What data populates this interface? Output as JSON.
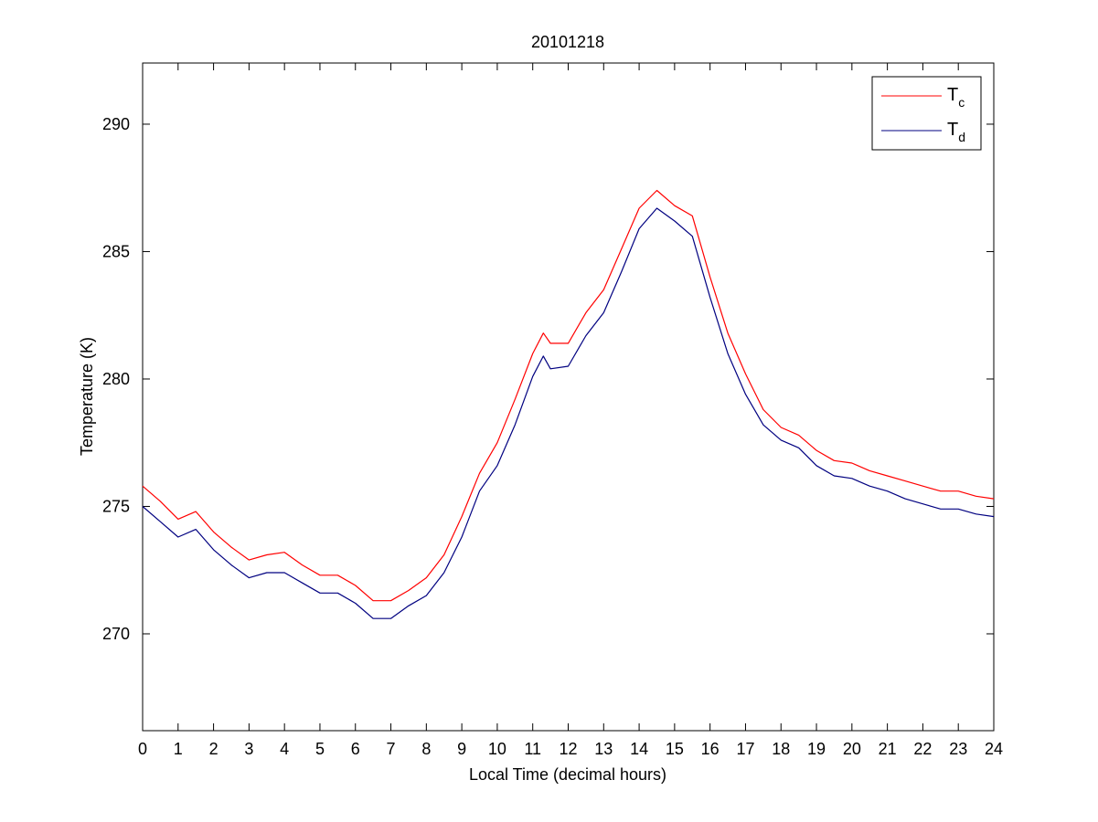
{
  "chart_data": {
    "type": "line",
    "title": "20101218",
    "xlabel": "Local Time (decimal hours)",
    "ylabel": "Temperature (K)",
    "xlim": [
      0,
      24
    ],
    "ylim": [
      266.2,
      292.4
    ],
    "xticks": [
      "0",
      "1",
      "2",
      "3",
      "4",
      "5",
      "6",
      "7",
      "8",
      "9",
      "10",
      "11",
      "12",
      "13",
      "14",
      "15",
      "16",
      "17",
      "18",
      "19",
      "20",
      "21",
      "22",
      "23",
      "24"
    ],
    "yticks": [
      "270",
      "275",
      "280",
      "285",
      "290"
    ],
    "grid": false,
    "legend_position": "top-right",
    "series": [
      {
        "name": "T",
        "name_sub": "c",
        "color": "#ff0000",
        "x": [
          0,
          0.5,
          1,
          1.5,
          2,
          2.5,
          3,
          3.5,
          4,
          4.5,
          5,
          5.5,
          6,
          6.5,
          7,
          7.5,
          8,
          8.5,
          9,
          9.5,
          10,
          10.5,
          11,
          11.3,
          11.5,
          12,
          12.5,
          13,
          13.5,
          14,
          14.5,
          15,
          15.5,
          16,
          16.5,
          17,
          17.5,
          18,
          18.5,
          19,
          19.5,
          20,
          20.5,
          21,
          21.5,
          22,
          22.5,
          23,
          23.5,
          24
        ],
        "y": [
          275.8,
          275.2,
          274.5,
          274.8,
          274.0,
          273.4,
          272.9,
          273.1,
          273.2,
          272.7,
          272.3,
          272.3,
          271.9,
          271.3,
          271.3,
          271.7,
          272.2,
          273.1,
          274.6,
          276.3,
          277.5,
          279.2,
          281.0,
          281.8,
          281.4,
          281.4,
          282.6,
          283.5,
          285.1,
          286.7,
          287.4,
          286.8,
          286.4,
          284.0,
          281.8,
          280.2,
          278.8,
          278.1,
          277.8,
          277.2,
          276.8,
          276.7,
          276.4,
          276.2,
          276.0,
          275.8,
          275.6,
          275.6,
          275.4,
          275.3
        ]
      },
      {
        "name": "T",
        "name_sub": "d",
        "color": "#000080",
        "x": [
          0,
          0.5,
          1,
          1.5,
          2,
          2.5,
          3,
          3.5,
          4,
          4.5,
          5,
          5.5,
          6,
          6.5,
          7,
          7.5,
          8,
          8.5,
          9,
          9.5,
          10,
          10.5,
          11,
          11.3,
          11.5,
          12,
          12.5,
          13,
          13.5,
          14,
          14.5,
          15,
          15.5,
          16,
          16.5,
          17,
          17.5,
          18,
          18.5,
          19,
          19.5,
          20,
          20.5,
          21,
          21.5,
          22,
          22.5,
          23,
          23.5,
          24
        ],
        "y": [
          275.0,
          274.4,
          273.8,
          274.1,
          273.3,
          272.7,
          272.2,
          272.4,
          272.4,
          272.0,
          271.6,
          271.6,
          271.2,
          270.6,
          270.6,
          271.1,
          271.5,
          272.4,
          273.8,
          275.6,
          276.6,
          278.2,
          280.1,
          280.9,
          280.4,
          280.5,
          281.7,
          282.6,
          284.2,
          285.9,
          286.7,
          286.2,
          285.6,
          283.2,
          281.0,
          279.4,
          278.2,
          277.6,
          277.3,
          276.6,
          276.2,
          276.1,
          275.8,
          275.6,
          275.3,
          275.1,
          274.9,
          274.9,
          274.7,
          274.6
        ]
      }
    ]
  }
}
